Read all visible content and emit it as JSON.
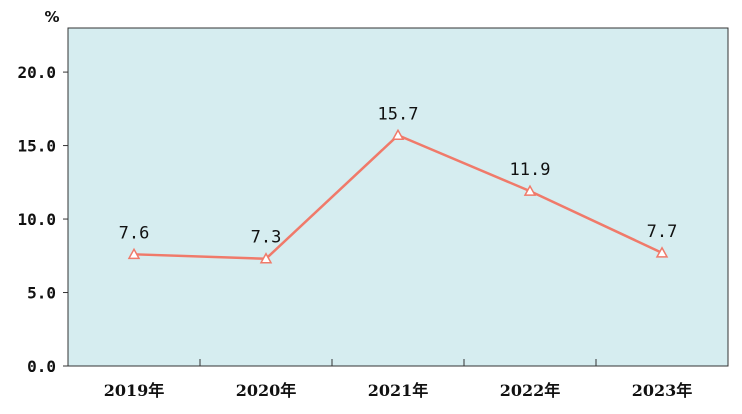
{
  "chart_data": {
    "type": "line",
    "categories": [
      "2019年",
      "2020年",
      "2021年",
      "2022年",
      "2023年"
    ],
    "values": [
      7.6,
      7.3,
      15.7,
      11.9,
      7.7
    ],
    "data_labels": [
      "7.6",
      "7.3",
      "15.7",
      "11.9",
      "7.7"
    ],
    "ylim": [
      0,
      23
    ],
    "yticks": [
      0,
      5,
      10,
      15,
      20
    ],
    "ytick_labels": [
      "0.0",
      "5.0",
      "10.0",
      "15.0",
      "20.0"
    ],
    "unit": "%",
    "title": "",
    "xlabel": "",
    "ylabel": "",
    "grid": false,
    "marker": "hollow-triangle",
    "colors": {
      "plot_background": "#d6edf0",
      "line": "#f07a6a",
      "axis": "#333333"
    }
  }
}
